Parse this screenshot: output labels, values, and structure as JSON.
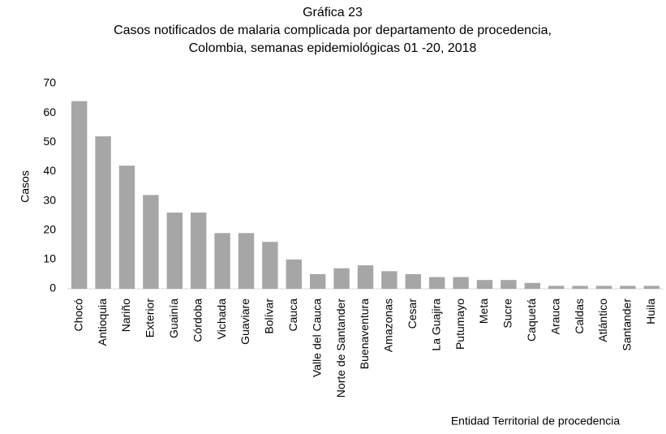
{
  "chart_data": {
    "type": "bar",
    "title": "Gráfica 23",
    "subtitle": [
      "Casos notificados de malaria complicada por departamento de procedencia,",
      "Colombia, semanas epidemiológicas 01 -20, 2018"
    ],
    "y_label": "Casos",
    "x_label": "Entidad Territorial de procedencia",
    "categories": [
      "Chocó",
      "Antioquia",
      "Nariño",
      "Exterior",
      "Guainía",
      "Córdoba",
      "Vichada",
      "Guaviare",
      "Bolívar",
      "Cauca",
      "Valle del Cauca",
      "Norte de Santander",
      "Buenaventura",
      "Amazonas",
      "Cesar",
      "La Guajira",
      "Putumayo",
      "Meta",
      "Sucre",
      "Caquetá",
      "Arauca",
      "Caldas",
      "Atlántico",
      "Santander",
      "Huila"
    ],
    "values": [
      64,
      52,
      42,
      32,
      26,
      26,
      19,
      19,
      16,
      10,
      5,
      7,
      8,
      6,
      5,
      4,
      4,
      3,
      3,
      2,
      1,
      1,
      1,
      1,
      1
    ],
    "color": "#a6a6a6",
    "ylim": [
      0,
      70
    ],
    "yticks": [
      0,
      10,
      20,
      30,
      40,
      50,
      60,
      70
    ],
    "grid": false
  }
}
